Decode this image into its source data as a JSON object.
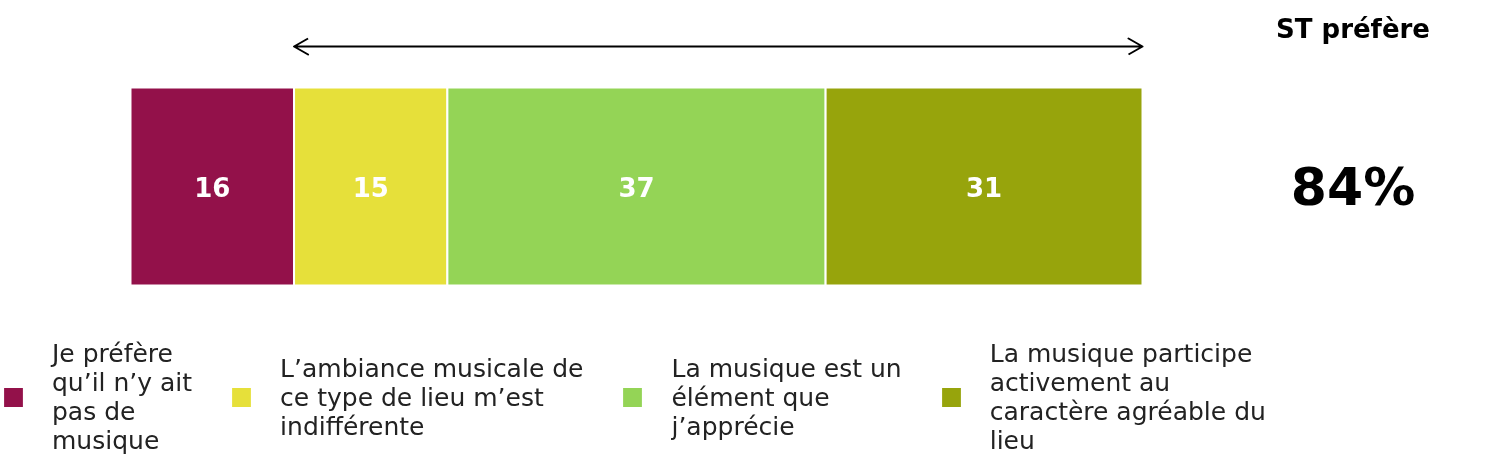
{
  "chart_data": {
    "type": "bar",
    "orientation": "horizontal",
    "stacked": true,
    "categories": [
      null
    ],
    "series": [
      {
        "name": "Je préfère qu’il n’y ait pas de musique",
        "color": "#93114a",
        "values": [
          16
        ]
      },
      {
        "name": "L’ambiance musicale de ce type de lieu m’est indifférente",
        "color": "#e6e03a",
        "values": [
          15
        ]
      },
      {
        "name": "La musique est un élément que j’apprécie",
        "color": "#94d456",
        "values": [
          37
        ]
      },
      {
        "name": "La musique participe activement au caractère agréable du lieu",
        "color": "#97a40c",
        "values": [
          31
        ]
      }
    ],
    "data_labels": true,
    "legend": "bottom",
    "grid": false,
    "tick_labels": false,
    "annotations": [
      "ST préfère",
      "84%"
    ]
  }
}
